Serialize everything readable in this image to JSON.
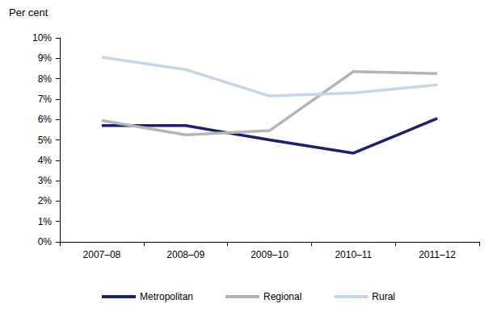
{
  "chart_data": {
    "type": "line",
    "y_label": "Per cent",
    "categories": [
      "2007–08",
      "2008–09",
      "2009–10",
      "2010–11",
      "2011–12"
    ],
    "series": [
      {
        "name": "Metropolitan",
        "color": "#1b2171",
        "values": [
          5.7,
          5.7,
          5.0,
          4.35,
          6.05
        ]
      },
      {
        "name": "Regional",
        "color": "#b5b5b5",
        "values": [
          5.95,
          5.25,
          5.45,
          8.35,
          8.25
        ]
      },
      {
        "name": "Rural",
        "color": "#c5d5ea",
        "values": [
          9.05,
          8.45,
          7.15,
          7.3,
          7.7
        ]
      }
    ],
    "ylim": [
      0,
      10
    ],
    "yticks": [
      {
        "value": 0,
        "label": "0%"
      },
      {
        "value": 1,
        "label": "1%"
      },
      {
        "value": 2,
        "label": "2%"
      },
      {
        "value": 3,
        "label": "3%"
      },
      {
        "value": 4,
        "label": "4%"
      },
      {
        "value": 5,
        "label": "5%"
      },
      {
        "value": 6,
        "label": "6%"
      },
      {
        "value": 7,
        "label": "7%"
      },
      {
        "value": 8,
        "label": "8%"
      },
      {
        "value": 9,
        "label": "9%"
      },
      {
        "value": 10,
        "label": "10%"
      }
    ],
    "grid": false,
    "legend": "bottom"
  }
}
